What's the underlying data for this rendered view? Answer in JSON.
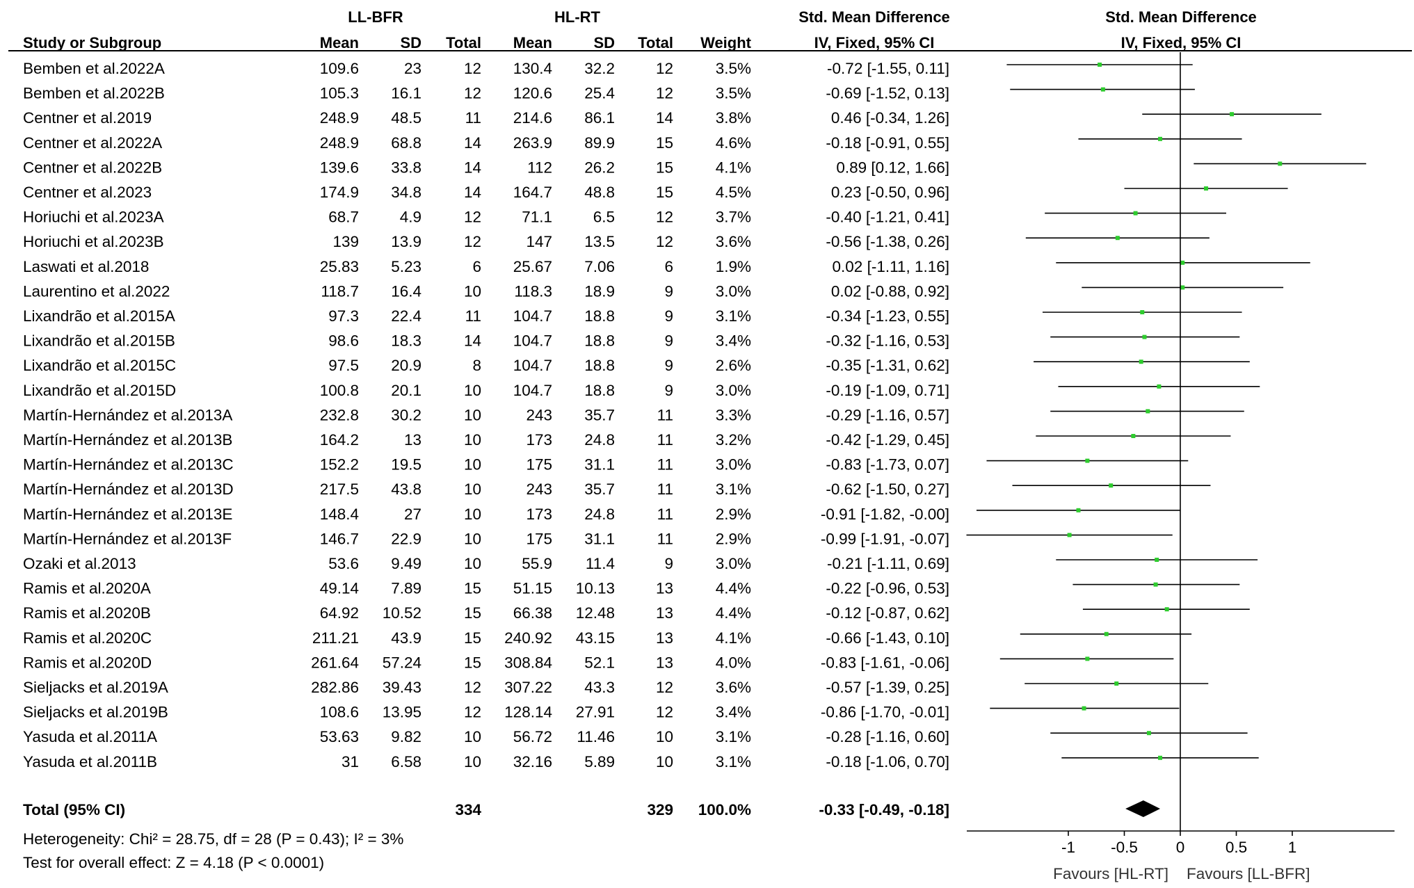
{
  "header": {
    "group1": "LL-BFR",
    "group2": "HL-RT",
    "effect_header": "Std. Mean Difference",
    "plot_header": "Std. Mean Difference",
    "columns": {
      "study": "Study or Subgroup",
      "mean1": "Mean",
      "sd1": "SD",
      "total1": "Total",
      "mean2": "Mean",
      "sd2": "SD",
      "total2": "Total",
      "weight": "Weight",
      "ci": "IV, Fixed, 95% CI",
      "plot_ci": "IV, Fixed, 95% CI"
    }
  },
  "chart_data": {
    "type": "forest",
    "xlim": [
      -1.85,
      1.8
    ],
    "ticks": [
      -1,
      -0.5,
      0,
      0.5,
      1
    ],
    "tick_labels": [
      "-1",
      "-0.5",
      "0",
      "0.5",
      "1"
    ],
    "favours_left": "Favours [HL-RT]",
    "favours_right": "Favours [LL-BFR]",
    "colors": {
      "marker": "#2ecc2e",
      "line": "#000000",
      "diamond": "#000000"
    },
    "studies": [
      {
        "name": "Bemben et al.2022A",
        "mean1": "109.6",
        "sd1": "23",
        "n1": "12",
        "mean2": "130.4",
        "sd2": "32.2",
        "n2": "12",
        "weight": "3.5%",
        "ci_text": "-0.72 [-1.55, 0.11]",
        "smd": -0.72,
        "lo": -1.55,
        "hi": 0.11
      },
      {
        "name": "Bemben et al.2022B",
        "mean1": "105.3",
        "sd1": "16.1",
        "n1": "12",
        "mean2": "120.6",
        "sd2": "25.4",
        "n2": "12",
        "weight": "3.5%",
        "ci_text": "-0.69 [-1.52, 0.13]",
        "smd": -0.69,
        "lo": -1.52,
        "hi": 0.13
      },
      {
        "name": "Centner et al.2019",
        "mean1": "248.9",
        "sd1": "48.5",
        "n1": "11",
        "mean2": "214.6",
        "sd2": "86.1",
        "n2": "14",
        "weight": "3.8%",
        "ci_text": "0.46 [-0.34, 1.26]",
        "smd": 0.46,
        "lo": -0.34,
        "hi": 1.26
      },
      {
        "name": "Centner et al.2022A",
        "mean1": "248.9",
        "sd1": "68.8",
        "n1": "14",
        "mean2": "263.9",
        "sd2": "89.9",
        "n2": "15",
        "weight": "4.6%",
        "ci_text": "-0.18 [-0.91, 0.55]",
        "smd": -0.18,
        "lo": -0.91,
        "hi": 0.55
      },
      {
        "name": "Centner et al.2022B",
        "mean1": "139.6",
        "sd1": "33.8",
        "n1": "14",
        "mean2": "112",
        "sd2": "26.2",
        "n2": "15",
        "weight": "4.1%",
        "ci_text": "0.89 [0.12, 1.66]",
        "smd": 0.89,
        "lo": 0.12,
        "hi": 1.66
      },
      {
        "name": "Centner et al.2023",
        "mean1": "174.9",
        "sd1": "34.8",
        "n1": "14",
        "mean2": "164.7",
        "sd2": "48.8",
        "n2": "15",
        "weight": "4.5%",
        "ci_text": "0.23 [-0.50, 0.96]",
        "smd": 0.23,
        "lo": -0.5,
        "hi": 0.96
      },
      {
        "name": "Horiuchi et al.2023A",
        "mean1": "68.7",
        "sd1": "4.9",
        "n1": "12",
        "mean2": "71.1",
        "sd2": "6.5",
        "n2": "12",
        "weight": "3.7%",
        "ci_text": "-0.40 [-1.21, 0.41]",
        "smd": -0.4,
        "lo": -1.21,
        "hi": 0.41
      },
      {
        "name": "Horiuchi et al.2023B",
        "mean1": "139",
        "sd1": "13.9",
        "n1": "12",
        "mean2": "147",
        "sd2": "13.5",
        "n2": "12",
        "weight": "3.6%",
        "ci_text": "-0.56 [-1.38, 0.26]",
        "smd": -0.56,
        "lo": -1.38,
        "hi": 0.26
      },
      {
        "name": "Laswati et al.2018",
        "mean1": "25.83",
        "sd1": "5.23",
        "n1": "6",
        "mean2": "25.67",
        "sd2": "7.06",
        "n2": "6",
        "weight": "1.9%",
        "ci_text": "0.02 [-1.11, 1.16]",
        "smd": 0.02,
        "lo": -1.11,
        "hi": 1.16
      },
      {
        "name": "Laurentino et al.2022",
        "mean1": "118.7",
        "sd1": "16.4",
        "n1": "10",
        "mean2": "118.3",
        "sd2": "18.9",
        "n2": "9",
        "weight": "3.0%",
        "ci_text": "0.02 [-0.88, 0.92]",
        "smd": 0.02,
        "lo": -0.88,
        "hi": 0.92
      },
      {
        "name": "Lixandrão et al.2015A",
        "mean1": "97.3",
        "sd1": "22.4",
        "n1": "11",
        "mean2": "104.7",
        "sd2": "18.8",
        "n2": "9",
        "weight": "3.1%",
        "ci_text": "-0.34 [-1.23, 0.55]",
        "smd": -0.34,
        "lo": -1.23,
        "hi": 0.55
      },
      {
        "name": "Lixandrão et al.2015B",
        "mean1": "98.6",
        "sd1": "18.3",
        "n1": "14",
        "mean2": "104.7",
        "sd2": "18.8",
        "n2": "9",
        "weight": "3.4%",
        "ci_text": "-0.32 [-1.16, 0.53]",
        "smd": -0.32,
        "lo": -1.16,
        "hi": 0.53
      },
      {
        "name": "Lixandrão et al.2015C",
        "mean1": "97.5",
        "sd1": "20.9",
        "n1": "8",
        "mean2": "104.7",
        "sd2": "18.8",
        "n2": "9",
        "weight": "2.6%",
        "ci_text": "-0.35 [-1.31, 0.62]",
        "smd": -0.35,
        "lo": -1.31,
        "hi": 0.62
      },
      {
        "name": "Lixandrão et al.2015D",
        "mean1": "100.8",
        "sd1": "20.1",
        "n1": "10",
        "mean2": "104.7",
        "sd2": "18.8",
        "n2": "9",
        "weight": "3.0%",
        "ci_text": "-0.19 [-1.09, 0.71]",
        "smd": -0.19,
        "lo": -1.09,
        "hi": 0.71
      },
      {
        "name": "Martín-Hernández et al.2013A",
        "mean1": "232.8",
        "sd1": "30.2",
        "n1": "10",
        "mean2": "243",
        "sd2": "35.7",
        "n2": "11",
        "weight": "3.3%",
        "ci_text": "-0.29 [-1.16, 0.57]",
        "smd": -0.29,
        "lo": -1.16,
        "hi": 0.57
      },
      {
        "name": "Martín-Hernández et al.2013B",
        "mean1": "164.2",
        "sd1": "13",
        "n1": "10",
        "mean2": "173",
        "sd2": "24.8",
        "n2": "11",
        "weight": "3.2%",
        "ci_text": "-0.42 [-1.29, 0.45]",
        "smd": -0.42,
        "lo": -1.29,
        "hi": 0.45
      },
      {
        "name": "Martín-Hernández et al.2013C",
        "mean1": "152.2",
        "sd1": "19.5",
        "n1": "10",
        "mean2": "175",
        "sd2": "31.1",
        "n2": "11",
        "weight": "3.0%",
        "ci_text": "-0.83 [-1.73, 0.07]",
        "smd": -0.83,
        "lo": -1.73,
        "hi": 0.07
      },
      {
        "name": "Martín-Hernández et al.2013D",
        "mean1": "217.5",
        "sd1": "43.8",
        "n1": "10",
        "mean2": "243",
        "sd2": "35.7",
        "n2": "11",
        "weight": "3.1%",
        "ci_text": "-0.62 [-1.50, 0.27]",
        "smd": -0.62,
        "lo": -1.5,
        "hi": 0.27
      },
      {
        "name": "Martín-Hernández et al.2013E",
        "mean1": "148.4",
        "sd1": "27",
        "n1": "10",
        "mean2": "173",
        "sd2": "24.8",
        "n2": "11",
        "weight": "2.9%",
        "ci_text": "-0.91 [-1.82, -0.00]",
        "smd": -0.91,
        "lo": -1.82,
        "hi": 0.0
      },
      {
        "name": "Martín-Hernández et al.2013F",
        "mean1": "146.7",
        "sd1": "22.9",
        "n1": "10",
        "mean2": "175",
        "sd2": "31.1",
        "n2": "11",
        "weight": "2.9%",
        "ci_text": "-0.99 [-1.91, -0.07]",
        "smd": -0.99,
        "lo": -1.91,
        "hi": -0.07
      },
      {
        "name": "Ozaki et al.2013",
        "mean1": "53.6",
        "sd1": "9.49",
        "n1": "10",
        "mean2": "55.9",
        "sd2": "11.4",
        "n2": "9",
        "weight": "3.0%",
        "ci_text": "-0.21 [-1.11, 0.69]",
        "smd": -0.21,
        "lo": -1.11,
        "hi": 0.69
      },
      {
        "name": "Ramis et al.2020A",
        "mean1": "49.14",
        "sd1": "7.89",
        "n1": "15",
        "mean2": "51.15",
        "sd2": "10.13",
        "n2": "13",
        "weight": "4.4%",
        "ci_text": "-0.22 [-0.96, 0.53]",
        "smd": -0.22,
        "lo": -0.96,
        "hi": 0.53
      },
      {
        "name": "Ramis et al.2020B",
        "mean1": "64.92",
        "sd1": "10.52",
        "n1": "15",
        "mean2": "66.38",
        "sd2": "12.48",
        "n2": "13",
        "weight": "4.4%",
        "ci_text": "-0.12 [-0.87, 0.62]",
        "smd": -0.12,
        "lo": -0.87,
        "hi": 0.62
      },
      {
        "name": "Ramis et al.2020C",
        "mean1": "211.21",
        "sd1": "43.9",
        "n1": "15",
        "mean2": "240.92",
        "sd2": "43.15",
        "n2": "13",
        "weight": "4.1%",
        "ci_text": "-0.66 [-1.43, 0.10]",
        "smd": -0.66,
        "lo": -1.43,
        "hi": 0.1
      },
      {
        "name": "Ramis et al.2020D",
        "mean1": "261.64",
        "sd1": "57.24",
        "n1": "15",
        "mean2": "308.84",
        "sd2": "52.1",
        "n2": "13",
        "weight": "4.0%",
        "ci_text": "-0.83 [-1.61, -0.06]",
        "smd": -0.83,
        "lo": -1.61,
        "hi": -0.06
      },
      {
        "name": "Sieljacks et al.2019A",
        "mean1": "282.86",
        "sd1": "39.43",
        "n1": "12",
        "mean2": "307.22",
        "sd2": "43.3",
        "n2": "12",
        "weight": "3.6%",
        "ci_text": "-0.57 [-1.39, 0.25]",
        "smd": -0.57,
        "lo": -1.39,
        "hi": 0.25
      },
      {
        "name": "Sieljacks et al.2019B",
        "mean1": "108.6",
        "sd1": "13.95",
        "n1": "12",
        "mean2": "128.14",
        "sd2": "27.91",
        "n2": "12",
        "weight": "3.4%",
        "ci_text": "-0.86 [-1.70, -0.01]",
        "smd": -0.86,
        "lo": -1.7,
        "hi": -0.01
      },
      {
        "name": "Yasuda et al.2011A",
        "mean1": "53.63",
        "sd1": "9.82",
        "n1": "10",
        "mean2": "56.72",
        "sd2": "11.46",
        "n2": "10",
        "weight": "3.1%",
        "ci_text": "-0.28 [-1.16, 0.60]",
        "smd": -0.28,
        "lo": -1.16,
        "hi": 0.6
      },
      {
        "name": "Yasuda et al.2011B",
        "mean1": "31",
        "sd1": "6.58",
        "n1": "10",
        "mean2": "32.16",
        "sd2": "5.89",
        "n2": "10",
        "weight": "3.1%",
        "ci_text": "-0.18 [-1.06, 0.70]",
        "smd": -0.18,
        "lo": -1.06,
        "hi": 0.7
      }
    ],
    "total": {
      "name": "Total (95% CI)",
      "n1": "334",
      "n2": "329",
      "weight": "100.0%",
      "ci_text": "-0.33 [-0.49, -0.18]",
      "smd": -0.33,
      "lo": -0.49,
      "hi": -0.18
    },
    "heterogeneity": "Heterogeneity: Chi² = 28.75, df = 28 (P = 0.43); I² = 3%",
    "overall_effect": "Test for overall effect: Z = 4.18 (P < 0.0001)"
  }
}
